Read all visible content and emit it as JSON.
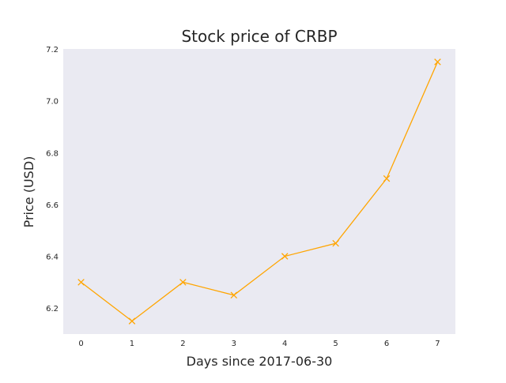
{
  "chart_data": {
    "type": "line",
    "title": "Stock price of CRBP",
    "xlabel": "Days since 2017-06-30",
    "ylabel": "Price (USD)",
    "x": [
      0,
      1,
      2,
      3,
      4,
      5,
      6,
      7
    ],
    "series": [
      {
        "name": "CRBP",
        "values": [
          6.3,
          6.15,
          6.3,
          6.25,
          6.4,
          6.45,
          6.7,
          7.15
        ]
      }
    ],
    "xlim": [
      -0.35,
      7.35
    ],
    "ylim": [
      6.1,
      7.2
    ],
    "xticks": [
      0,
      1,
      2,
      3,
      4,
      5,
      6,
      7
    ],
    "yticks": [
      6.2,
      6.4,
      6.6,
      6.8,
      7.0,
      7.2
    ],
    "ytick_labels": [
      "6.2",
      "6.4",
      "6.6",
      "6.8",
      "7.0",
      "7.2"
    ],
    "marker": "x",
    "grid": false,
    "colors": {
      "line": "#ffa500",
      "plot_bg": "#eaeaf2"
    }
  }
}
